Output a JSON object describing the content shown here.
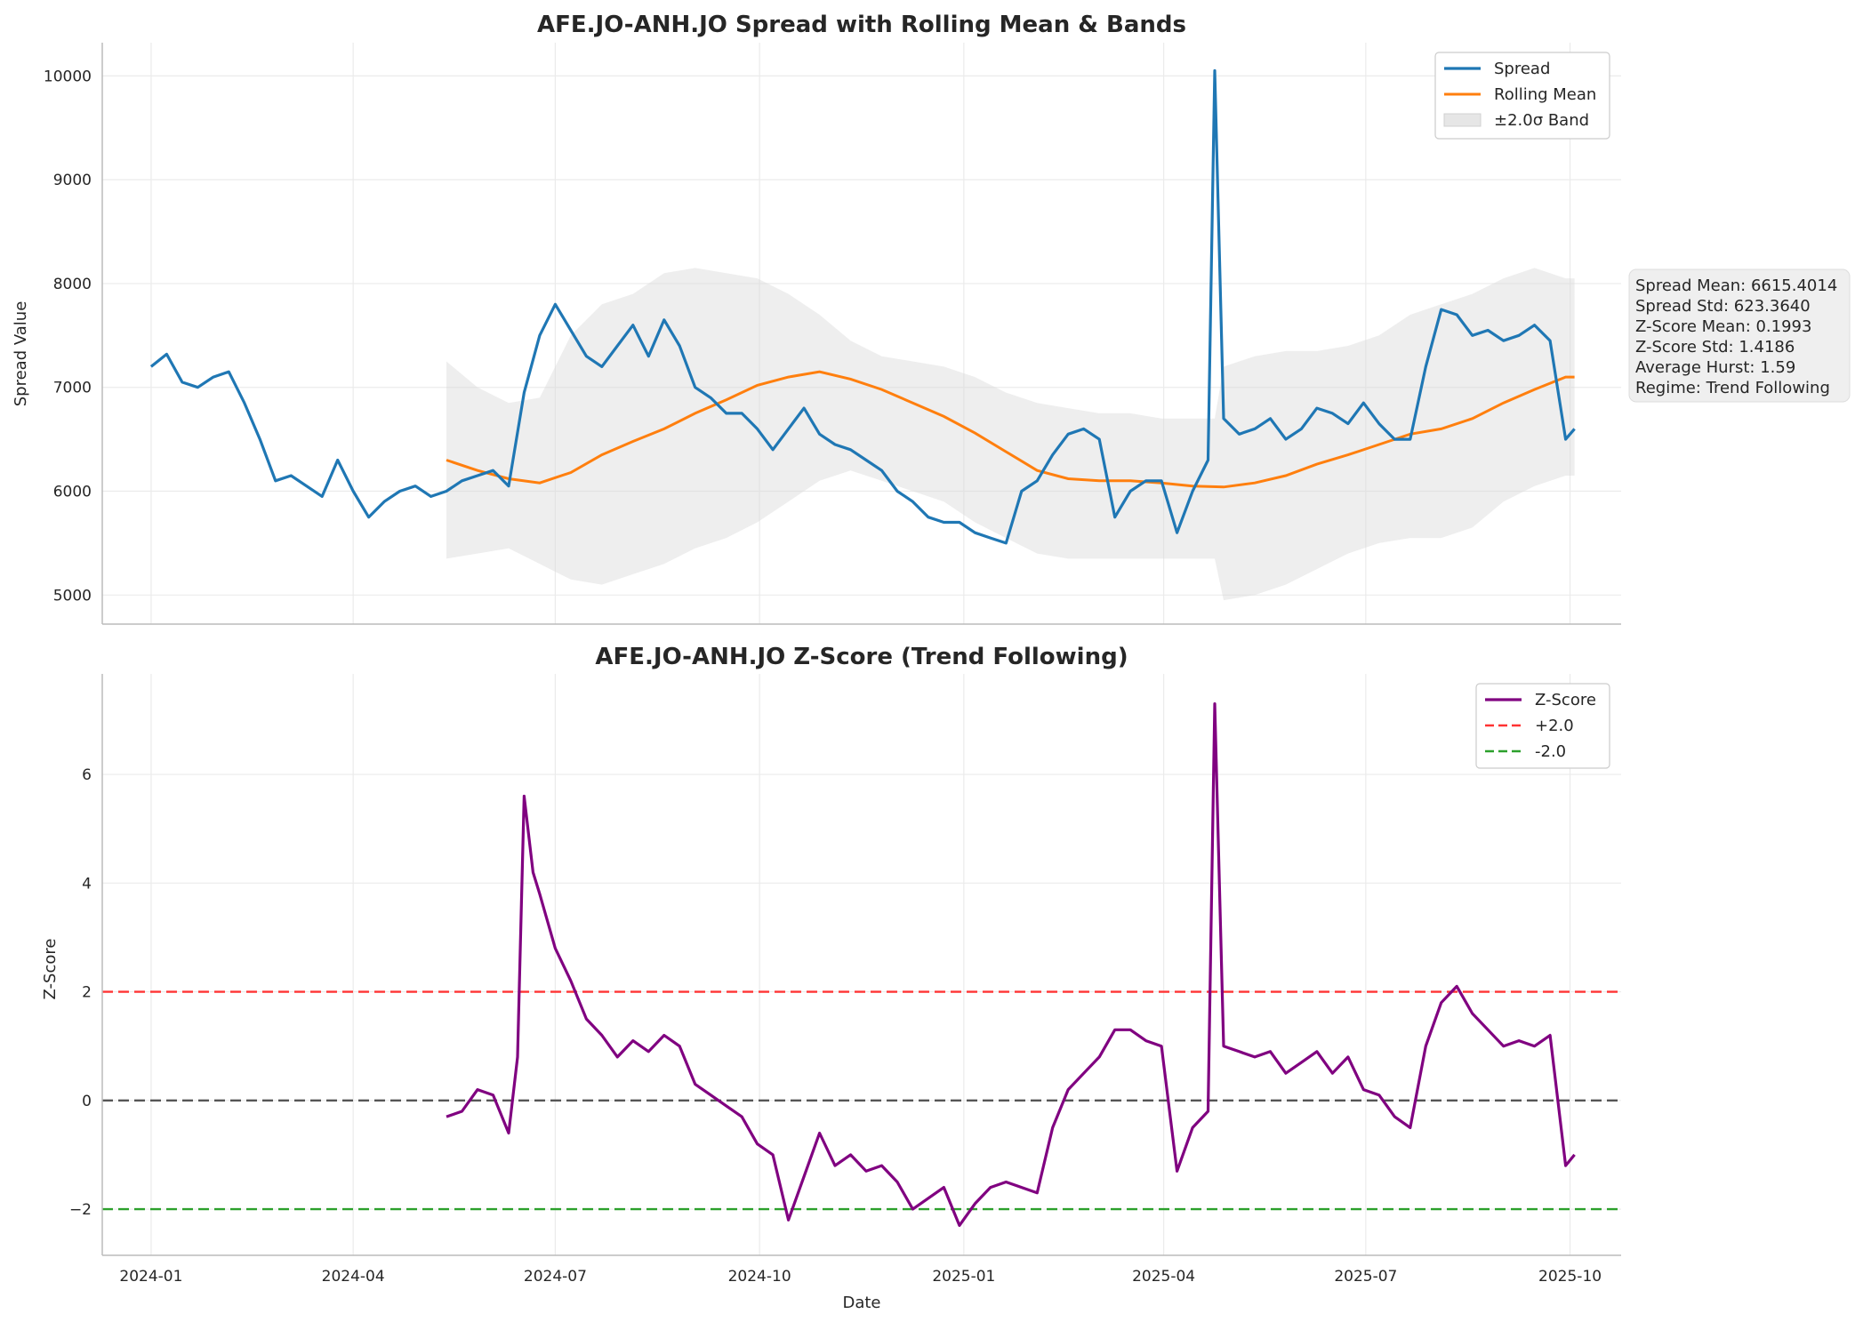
{
  "chart_data": [
    {
      "type": "line",
      "title": "AFE.JO-ANH.JO Spread with Rolling Mean & Bands",
      "xlabel": "",
      "ylabel": "Spread Value",
      "x_range": [
        "2023-12-10",
        "2025-10-24"
      ],
      "ylim": [
        4720,
        10320
      ],
      "yticks": [
        5000,
        6000,
        7000,
        8000,
        9000,
        10000
      ],
      "xticks": [
        "2024-01",
        "2024-04",
        "2024-07",
        "2024-10",
        "2025-01",
        "2025-04",
        "2025-07",
        "2025-10"
      ],
      "grid": true,
      "legend_position": "top-right",
      "legend": [
        "Spread",
        "Rolling Mean",
        "±2.0σ Band"
      ],
      "colors": {
        "spread": "#1f77b4",
        "rolling_mean": "#ff7f0e",
        "band": "#d9d9d9"
      },
      "series": [
        {
          "name": "Spread",
          "x": [
            "2024-01-01",
            "2024-01-08",
            "2024-01-15",
            "2024-01-22",
            "2024-01-29",
            "2024-02-05",
            "2024-02-12",
            "2024-02-19",
            "2024-02-26",
            "2024-03-04",
            "2024-03-11",
            "2024-03-18",
            "2024-03-25",
            "2024-04-01",
            "2024-04-08",
            "2024-04-15",
            "2024-04-22",
            "2024-04-29",
            "2024-05-06",
            "2024-05-13",
            "2024-05-20",
            "2024-05-27",
            "2024-06-03",
            "2024-06-10",
            "2024-06-17",
            "2024-06-24",
            "2024-07-01",
            "2024-07-08",
            "2024-07-15",
            "2024-07-22",
            "2024-07-29",
            "2024-08-05",
            "2024-08-12",
            "2024-08-19",
            "2024-08-26",
            "2024-09-02",
            "2024-09-09",
            "2024-09-16",
            "2024-09-23",
            "2024-09-30",
            "2024-10-07",
            "2024-10-14",
            "2024-10-21",
            "2024-10-28",
            "2024-11-04",
            "2024-11-11",
            "2024-11-18",
            "2024-11-25",
            "2024-12-02",
            "2024-12-09",
            "2024-12-16",
            "2024-12-23",
            "2024-12-30",
            "2025-01-06",
            "2025-01-13",
            "2025-01-20",
            "2025-01-27",
            "2025-02-03",
            "2025-02-10",
            "2025-02-17",
            "2025-02-24",
            "2025-03-03",
            "2025-03-10",
            "2025-03-17",
            "2025-03-24",
            "2025-03-31",
            "2025-04-07",
            "2025-04-14",
            "2025-04-21",
            "2025-04-24",
            "2025-04-28",
            "2025-05-05",
            "2025-05-12",
            "2025-05-19",
            "2025-05-26",
            "2025-06-02",
            "2025-06-09",
            "2025-06-16",
            "2025-06-23",
            "2025-06-30",
            "2025-07-07",
            "2025-07-14",
            "2025-07-21",
            "2025-07-28",
            "2025-08-04",
            "2025-08-11",
            "2025-08-18",
            "2025-08-25",
            "2025-09-01",
            "2025-09-08",
            "2025-09-15",
            "2025-09-22",
            "2025-09-29",
            "2025-10-03"
          ],
          "values": [
            7200,
            7320,
            7050,
            7000,
            7100,
            7150,
            6850,
            6500,
            6100,
            6150,
            6050,
            5950,
            6300,
            6000,
            5750,
            5900,
            6000,
            6050,
            5950,
            6000,
            6100,
            6150,
            6200,
            6050,
            6950,
            7500,
            7800,
            7550,
            7300,
            7200,
            7400,
            7600,
            7300,
            7650,
            7400,
            7000,
            6900,
            6750,
            6750,
            6600,
            6400,
            6600,
            6800,
            6550,
            6450,
            6400,
            6300,
            6200,
            6000,
            5900,
            5750,
            5700,
            5700,
            5600,
            5550,
            5500,
            6000,
            6100,
            6350,
            6550,
            6600,
            6500,
            5750,
            6000,
            6100,
            6100,
            5600,
            6000,
            6300,
            10050,
            6700,
            6550,
            6600,
            6700,
            6500,
            6600,
            6800,
            6750,
            6650,
            6850,
            6650,
            6500,
            6500,
            7200,
            7750,
            7700,
            7500,
            7550,
            7450,
            7500,
            7600,
            7450,
            6500,
            6600
          ]
        },
        {
          "name": "Rolling Mean",
          "x": [
            "2024-05-13",
            "2024-05-27",
            "2024-06-10",
            "2024-06-24",
            "2024-07-08",
            "2024-07-22",
            "2024-08-05",
            "2024-08-19",
            "2024-09-02",
            "2024-09-16",
            "2024-09-30",
            "2024-10-14",
            "2024-10-28",
            "2024-11-11",
            "2024-11-25",
            "2024-12-09",
            "2024-12-23",
            "2025-01-06",
            "2025-01-20",
            "2025-02-03",
            "2025-02-17",
            "2025-03-03",
            "2025-03-17",
            "2025-03-31",
            "2025-04-14",
            "2025-04-28",
            "2025-05-12",
            "2025-05-26",
            "2025-06-09",
            "2025-06-23",
            "2025-07-07",
            "2025-07-21",
            "2025-08-04",
            "2025-08-18",
            "2025-09-01",
            "2025-09-15",
            "2025-09-29",
            "2025-10-03"
          ],
          "values": [
            6300,
            6200,
            6120,
            6080,
            6180,
            6350,
            6480,
            6600,
            6750,
            6880,
            7020,
            7100,
            7150,
            7080,
            6980,
            6850,
            6720,
            6560,
            6380,
            6200,
            6120,
            6100,
            6100,
            6080,
            6050,
            6040,
            6080,
            6150,
            6260,
            6350,
            6450,
            6550,
            6600,
            6700,
            6850,
            6980,
            7100,
            7100
          ]
        }
      ],
      "band": {
        "name": "±2.0σ Band",
        "x": [
          "2024-05-13",
          "2024-05-27",
          "2024-06-10",
          "2024-06-24",
          "2024-07-08",
          "2024-07-22",
          "2024-08-05",
          "2024-08-19",
          "2024-09-02",
          "2024-09-16",
          "2024-09-30",
          "2024-10-14",
          "2024-10-28",
          "2024-11-11",
          "2024-11-25",
          "2024-12-09",
          "2024-12-23",
          "2025-01-06",
          "2025-01-20",
          "2025-02-03",
          "2025-02-17",
          "2025-03-03",
          "2025-03-17",
          "2025-03-31",
          "2025-04-14",
          "2025-04-24",
          "2025-04-28",
          "2025-05-12",
          "2025-05-26",
          "2025-06-09",
          "2025-06-23",
          "2025-07-07",
          "2025-07-21",
          "2025-08-04",
          "2025-08-18",
          "2025-09-01",
          "2025-09-15",
          "2025-09-29",
          "2025-10-03"
        ],
        "upper": [
          7250,
          7000,
          6850,
          6900,
          7500,
          7800,
          7900,
          8100,
          8150,
          8100,
          8050,
          7900,
          7700,
          7450,
          7300,
          7250,
          7200,
          7100,
          6950,
          6850,
          6800,
          6750,
          6750,
          6700,
          6700,
          6700,
          7200,
          7300,
          7350,
          7350,
          7400,
          7500,
          7700,
          7800,
          7900,
          8050,
          8150,
          8050,
          8050
        ],
        "lower": [
          5350,
          5400,
          5450,
          5300,
          5150,
          5100,
          5200,
          5300,
          5450,
          5550,
          5700,
          5900,
          6100,
          6200,
          6100,
          6000,
          5900,
          5700,
          5550,
          5400,
          5350,
          5350,
          5350,
          5350,
          5350,
          5350,
          4950,
          5000,
          5100,
          5250,
          5400,
          5500,
          5550,
          5550,
          5650,
          5900,
          6050,
          6150,
          6150
        ]
      }
    },
    {
      "type": "line",
      "title": "AFE.JO-ANH.JO Z-Score (Trend Following)",
      "xlabel": "Date",
      "ylabel": "Z-Score",
      "x_range": [
        "2023-12-10",
        "2025-10-24"
      ],
      "ylim": [
        -2.85,
        7.85
      ],
      "yticks": [
        -2,
        0,
        2,
        4,
        6
      ],
      "xticks": [
        "2024-01",
        "2024-04",
        "2024-07",
        "2024-10",
        "2025-01",
        "2025-04",
        "2025-07",
        "2025-10"
      ],
      "grid": true,
      "legend_position": "top-right",
      "legend": [
        "Z-Score",
        "+2.0",
        "-2.0"
      ],
      "colors": {
        "zscore": "#800080",
        "upper_threshold": "#ff3333",
        "lower_threshold": "#2ca02c",
        "zero_line": "#555555"
      },
      "thresholds": {
        "upper": 2.0,
        "lower": -2.0,
        "zero": 0
      },
      "series": [
        {
          "name": "Z-Score",
          "x": [
            "2024-05-13",
            "2024-05-20",
            "2024-05-27",
            "2024-06-03",
            "2024-06-10",
            "2024-06-14",
            "2024-06-17",
            "2024-06-21",
            "2024-06-24",
            "2024-07-01",
            "2024-07-08",
            "2024-07-15",
            "2024-07-22",
            "2024-07-29",
            "2024-08-05",
            "2024-08-12",
            "2024-08-19",
            "2024-08-26",
            "2024-09-02",
            "2024-09-09",
            "2024-09-16",
            "2024-09-23",
            "2024-09-30",
            "2024-10-07",
            "2024-10-14",
            "2024-10-21",
            "2024-10-28",
            "2024-11-04",
            "2024-11-11",
            "2024-11-18",
            "2024-11-25",
            "2024-12-02",
            "2024-12-09",
            "2024-12-16",
            "2024-12-23",
            "2024-12-30",
            "2025-01-06",
            "2025-01-13",
            "2025-01-20",
            "2025-01-27",
            "2025-02-03",
            "2025-02-10",
            "2025-02-17",
            "2025-02-24",
            "2025-03-03",
            "2025-03-10",
            "2025-03-17",
            "2025-03-24",
            "2025-03-31",
            "2025-04-07",
            "2025-04-14",
            "2025-04-21",
            "2025-04-24",
            "2025-04-28",
            "2025-05-05",
            "2025-05-12",
            "2025-05-19",
            "2025-05-26",
            "2025-06-02",
            "2025-06-09",
            "2025-06-16",
            "2025-06-23",
            "2025-06-30",
            "2025-07-07",
            "2025-07-14",
            "2025-07-21",
            "2025-07-28",
            "2025-08-04",
            "2025-08-11",
            "2025-08-18",
            "2025-08-25",
            "2025-09-01",
            "2025-09-08",
            "2025-09-15",
            "2025-09-22",
            "2025-09-29",
            "2025-10-03"
          ],
          "values": [
            -0.3,
            -0.2,
            0.2,
            0.1,
            -0.6,
            0.8,
            5.6,
            4.2,
            3.8,
            2.8,
            2.2,
            1.5,
            1.2,
            0.8,
            1.1,
            0.9,
            1.2,
            1.0,
            0.3,
            0.1,
            -0.1,
            -0.3,
            -0.8,
            -1.0,
            -2.2,
            -1.4,
            -0.6,
            -1.2,
            -1.0,
            -1.3,
            -1.2,
            -1.5,
            -2.0,
            -1.8,
            -1.6,
            -2.3,
            -1.9,
            -1.6,
            -1.5,
            -1.6,
            -1.7,
            -0.5,
            0.2,
            0.5,
            0.8,
            1.3,
            1.3,
            1.1,
            1.0,
            -1.3,
            -0.5,
            -0.2,
            7.3,
            1.0,
            0.9,
            0.8,
            0.9,
            0.5,
            0.7,
            0.9,
            0.5,
            0.8,
            0.2,
            0.1,
            -0.3,
            -0.5,
            1.0,
            1.8,
            2.1,
            1.6,
            1.3,
            1.0,
            1.1,
            1.0,
            1.2,
            -1.2,
            -1.0
          ]
        }
      ]
    }
  ],
  "stats_box": {
    "lines": [
      "Spread Mean: 6615.4014",
      "Spread Std: 623.3640",
      "Z-Score Mean: 0.1993",
      "Z-Score Std: 1.4186",
      "Average Hurst: 1.59",
      "Regime: Trend Following"
    ]
  }
}
